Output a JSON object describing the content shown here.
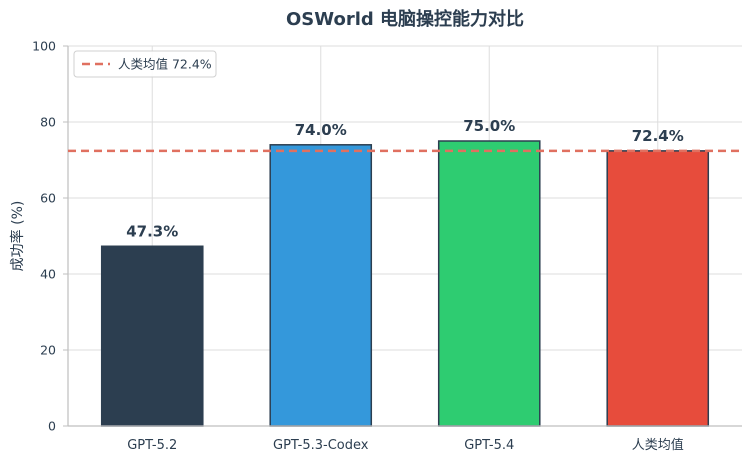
{
  "chart_data": {
    "type": "bar",
    "title": "OSWorld 电脑操控能力对比",
    "xlabel": "",
    "ylabel": "成功率 (%)",
    "ylim": [
      0,
      100
    ],
    "yticks": [
      "0",
      "20",
      "40",
      "60",
      "80",
      "100"
    ],
    "grid": true,
    "categories": [
      "GPT-5.2",
      "GPT-5.3-Codex",
      "GPT-5.4",
      "人类均值"
    ],
    "values": [
      47.3,
      74.0,
      75.0,
      72.4
    ],
    "value_labels": [
      "47.3%",
      "74.0%",
      "75.0%",
      "72.4%"
    ],
    "colors": [
      "#2c3e50",
      "#3498db",
      "#2ecc71",
      "#e74c3c"
    ],
    "bar_edge_color": "#2c3e50",
    "reference_line": {
      "label": "人类均值 72.4%",
      "value": 72.4,
      "color": "#e07060",
      "style": "dashed"
    },
    "legend": {
      "position": "top-left",
      "entries": [
        "人类均值 72.4%"
      ]
    }
  }
}
